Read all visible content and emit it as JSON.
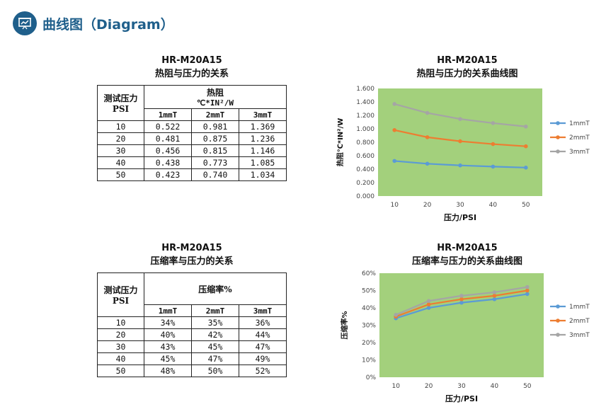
{
  "header": {
    "title": "曲线图（Diagram）",
    "icon": "presentation-chart-icon",
    "color": "#1f5f8b"
  },
  "tables": [
    {
      "title": "HR-M20A15",
      "subtitle": "热阻与压力的关系",
      "pressure_header_line1": "测试压力",
      "pressure_header_line2": "PSI",
      "value_header_line1": "热阻",
      "value_header_line2": "℃*IN²/W",
      "columns": [
        "1mmT",
        "2mmT",
        "3mmT"
      ],
      "rows": [
        {
          "pressure": "10",
          "values": [
            "0.522",
            "0.981",
            "1.369"
          ]
        },
        {
          "pressure": "20",
          "values": [
            "0.481",
            "0.875",
            "1.236"
          ]
        },
        {
          "pressure": "30",
          "values": [
            "0.456",
            "0.815",
            "1.146"
          ]
        },
        {
          "pressure": "40",
          "values": [
            "0.438",
            "0.773",
            "1.085"
          ]
        },
        {
          "pressure": "50",
          "values": [
            "0.423",
            "0.740",
            "1.034"
          ]
        }
      ]
    },
    {
      "title": "HR-M20A15",
      "subtitle": "压缩率与压力的关系",
      "pressure_header_line1": "测试压力",
      "pressure_header_line2": "PSI",
      "value_header_line1": "压缩率%",
      "value_header_line2": "",
      "columns": [
        "1mmT",
        "2mmT",
        "3mmT"
      ],
      "rows": [
        {
          "pressure": "10",
          "values": [
            "34%",
            "35%",
            "36%"
          ]
        },
        {
          "pressure": "20",
          "values": [
            "40%",
            "42%",
            "44%"
          ]
        },
        {
          "pressure": "30",
          "values": [
            "43%",
            "45%",
            "47%"
          ]
        },
        {
          "pressure": "40",
          "values": [
            "45%",
            "47%",
            "49%"
          ]
        },
        {
          "pressure": "50",
          "values": [
            "48%",
            "50%",
            "52%"
          ]
        }
      ]
    }
  ],
  "chart_data": [
    {
      "type": "line",
      "title": "HR-M20A15",
      "subtitle": "热阻与压力的关系曲线图",
      "xlabel": "压力/PSI",
      "ylabel": "热阻℃*IN²/W",
      "x": [
        10,
        20,
        30,
        40,
        50
      ],
      "ylim": [
        0,
        1.6
      ],
      "yticks": [
        "0.000",
        "0.200",
        "0.400",
        "0.600",
        "0.800",
        "1.000",
        "1.200",
        "1.400",
        "1.600"
      ],
      "grid": false,
      "legend": "right",
      "plot_bg": "#a3d07c",
      "series": [
        {
          "name": "1mmT",
          "color": "#5b9bd5",
          "values": [
            0.522,
            0.481,
            0.456,
            0.438,
            0.423
          ]
        },
        {
          "name": "2mmT",
          "color": "#ed7d31",
          "values": [
            0.981,
            0.875,
            0.815,
            0.773,
            0.74
          ]
        },
        {
          "name": "3mmT",
          "color": "#a5a5a5",
          "values": [
            1.369,
            1.236,
            1.146,
            1.085,
            1.034
          ]
        }
      ]
    },
    {
      "type": "line",
      "title": "HR-M20A15",
      "subtitle": "压缩率与压力的关系曲线图",
      "xlabel": "压力/PSI",
      "ylabel": "压缩率%",
      "x": [
        10,
        20,
        30,
        40,
        50
      ],
      "ylim": [
        0,
        60
      ],
      "yticks": [
        "0%",
        "10%",
        "20%",
        "30%",
        "40%",
        "50%",
        "60%"
      ],
      "grid": false,
      "legend": "right",
      "plot_bg": "#a3d07c",
      "series": [
        {
          "name": "1mmT",
          "color": "#5b9bd5",
          "values": [
            34,
            40,
            43,
            45,
            48
          ]
        },
        {
          "name": "2mmT",
          "color": "#ed7d31",
          "values": [
            35,
            42,
            45,
            47,
            50
          ]
        },
        {
          "name": "3mmT",
          "color": "#a5a5a5",
          "values": [
            36,
            44,
            47,
            49,
            52
          ]
        }
      ]
    }
  ]
}
